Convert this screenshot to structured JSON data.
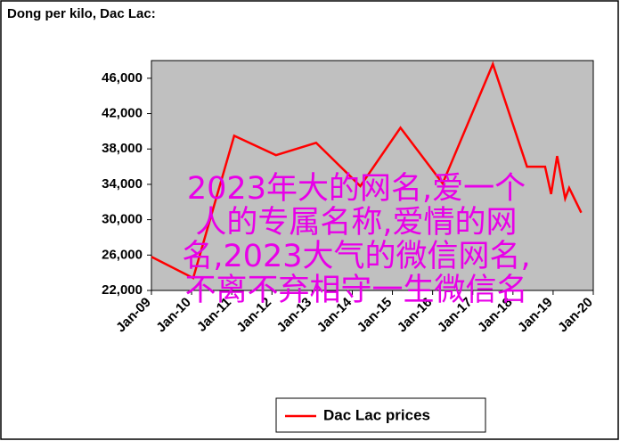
{
  "chart_data": {
    "type": "line",
    "title": "Dong per kilo, Dac Lac:",
    "annotation": "2023年大的网名,爱一个人的专属名称,爱情的网名,2023大气的微信网名,不离不弃相守一生微信名",
    "x": [
      2009,
      2010.04,
      2011.06,
      2012.1,
      2013.1,
      2014.2,
      2015.2,
      2016.25,
      2017.5,
      2018.35,
      2018.8,
      2018.95,
      2019.1,
      2019.3,
      2019.4,
      2019.7
    ],
    "series": [
      {
        "name": "Dac Lac prices",
        "color": "#ff0000",
        "values": [
          25800,
          23400,
          39500,
          37300,
          38700,
          33800,
          40400,
          34100,
          47600,
          36000,
          36000,
          32900,
          37200,
          32400,
          33600,
          30800
        ]
      }
    ],
    "xlim": [
      2009,
      2020
    ],
    "xticks": [
      {
        "value": 2009,
        "label": "Jan-09"
      },
      {
        "value": 2010,
        "label": "Jan-10"
      },
      {
        "value": 2011,
        "label": "Jan-11"
      },
      {
        "value": 2012,
        "label": "Jan-12"
      },
      {
        "value": 2013,
        "label": "Jan-13"
      },
      {
        "value": 2014,
        "label": "Jan-14"
      },
      {
        "value": 2015,
        "label": "Jan-15"
      },
      {
        "value": 2016,
        "label": "Jan-16"
      },
      {
        "value": 2017,
        "label": "Jan-17"
      },
      {
        "value": 2018,
        "label": "Jan-18"
      },
      {
        "value": 2019,
        "label": "Jan-19"
      },
      {
        "value": 2020,
        "label": "Jan-20"
      }
    ],
    "ylim": [
      22000,
      48000
    ],
    "yticks": [
      {
        "value": 22000,
        "label": "22,000"
      },
      {
        "value": 26000,
        "label": "26,000"
      },
      {
        "value": 30000,
        "label": "30,000"
      },
      {
        "value": 34000,
        "label": "34,000"
      },
      {
        "value": 38000,
        "label": "38,000"
      },
      {
        "value": 42000,
        "label": "42,000"
      },
      {
        "value": 46000,
        "label": "46,000"
      }
    ],
    "plot_background": "#c0c0c0"
  }
}
